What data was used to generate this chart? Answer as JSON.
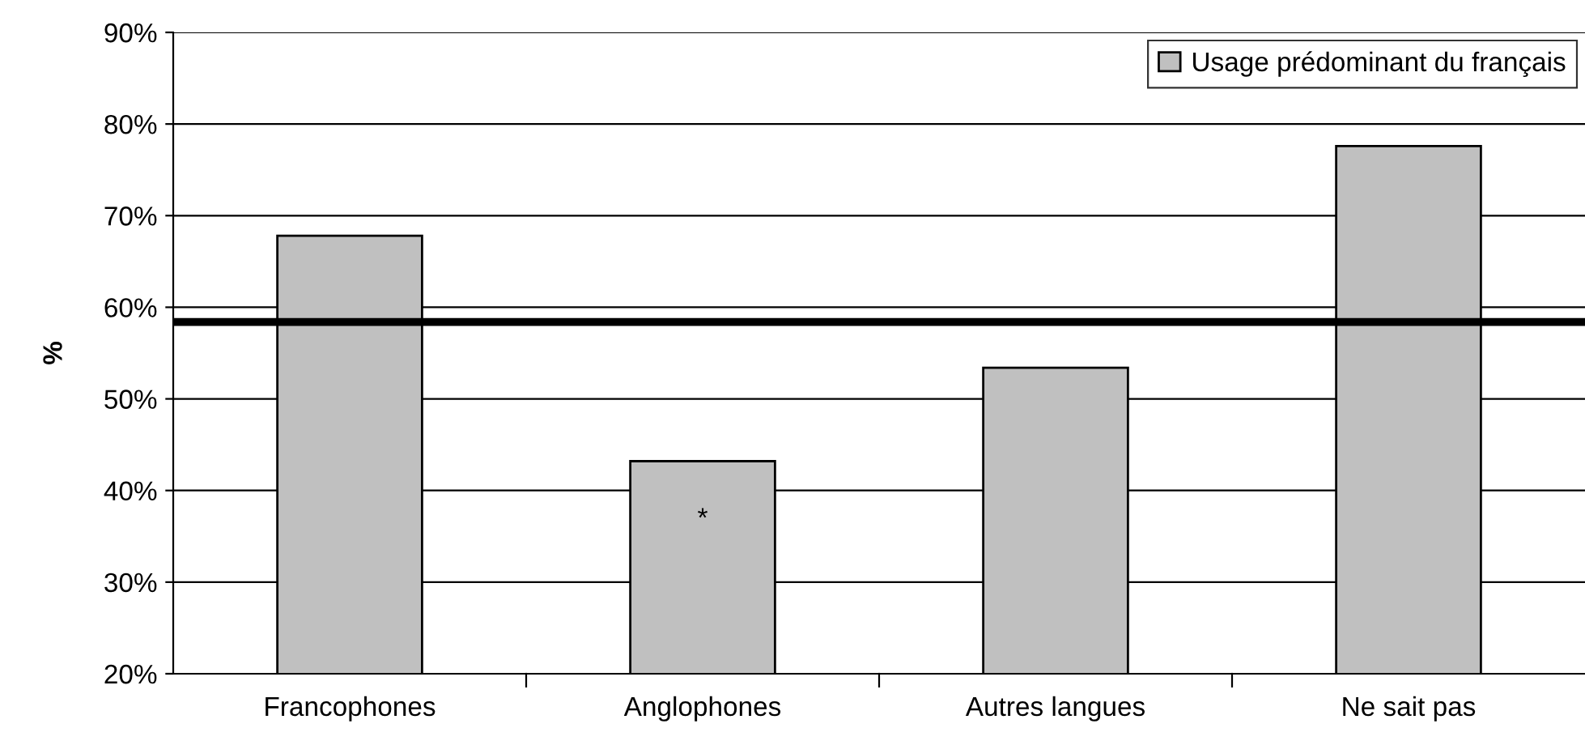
{
  "chart_data": {
    "type": "bar",
    "ylabel": "%",
    "categories": [
      "Francophones",
      "Anglophones",
      "Autres langues",
      "Ne sait pas"
    ],
    "series": [
      {
        "name": "Usage prédominant du français",
        "color": "#c0c0c0",
        "values": [
          67.8,
          43.2,
          53.4,
          77.6
        ]
      }
    ],
    "ylim": [
      20,
      90
    ],
    "yticks": [
      {
        "value": 20,
        "label": "20%"
      },
      {
        "value": 30,
        "label": "30%"
      },
      {
        "value": 40,
        "label": "40%"
      },
      {
        "value": 50,
        "label": "50%"
      },
      {
        "value": 60,
        "label": "60%"
      },
      {
        "value": 70,
        "label": "70%"
      },
      {
        "value": 80,
        "label": "80%"
      },
      {
        "value": 90,
        "label": "90%"
      }
    ],
    "ref_lines": [
      {
        "axis": "y",
        "value": 58.4,
        "color": "#000000"
      }
    ],
    "annotations": [
      "*"
    ],
    "grid": "y",
    "legend": "top right"
  }
}
